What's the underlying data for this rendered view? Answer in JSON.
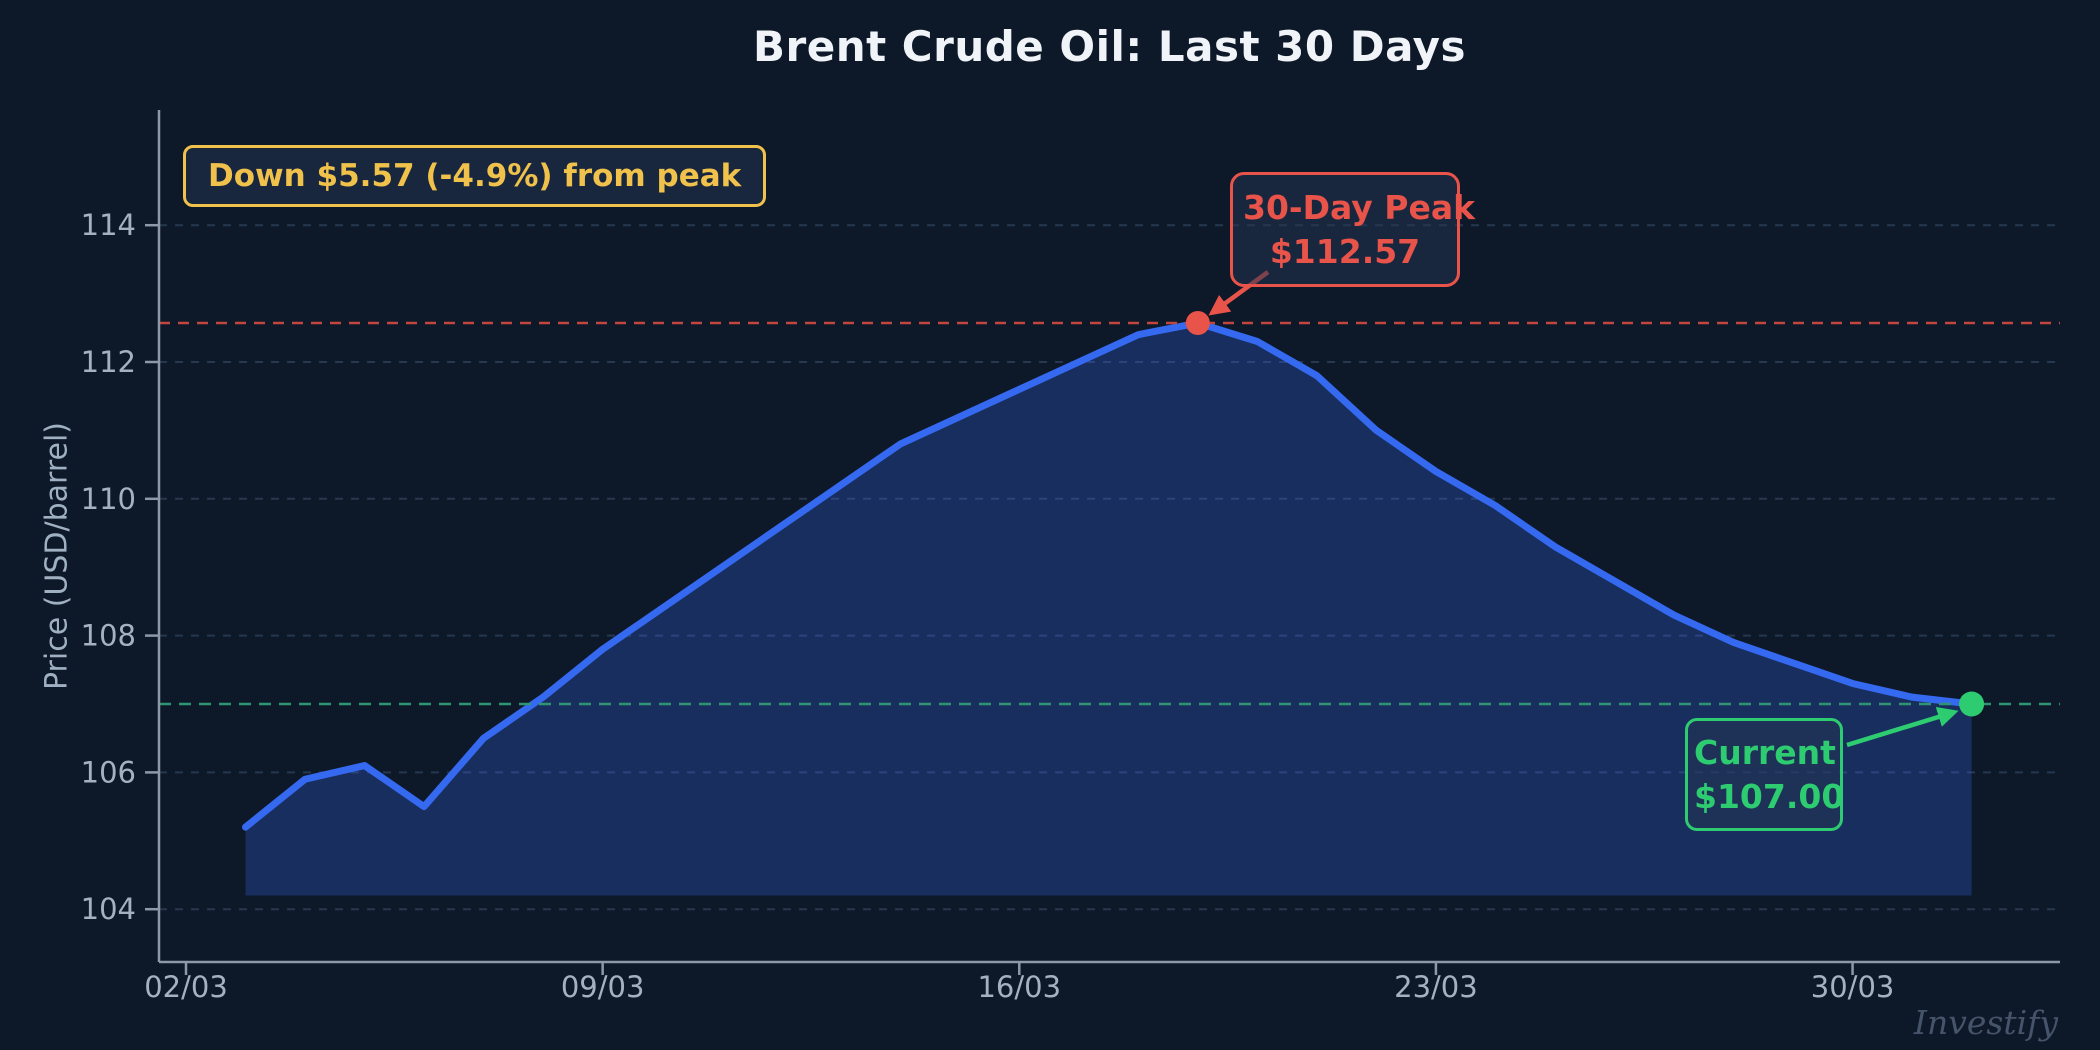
{
  "title": "Brent Crude Oil: Last 30 Days",
  "watermark": "Investify",
  "axes": {
    "y_label": "Price (USD/barrel)",
    "y_ticks": [
      104,
      106,
      108,
      110,
      112,
      114
    ],
    "x_ticks": [
      "02/03",
      "09/03",
      "16/03",
      "23/03",
      "30/03"
    ]
  },
  "annotations": {
    "drawdown": {
      "text": "Down $5.57 (-4.9%) from peak"
    },
    "peak": {
      "label": "30-Day Peak",
      "value": "$112.57"
    },
    "current": {
      "label": "Current",
      "value": "$107.00"
    }
  },
  "colors": {
    "background": "#0d1828",
    "line": "#3569f0",
    "area_fill": "rgba(53,105,240,0.28)",
    "grid": "#26384f",
    "axis": "#8d99a9",
    "tick_text": "#a6b1c0",
    "title_text": "#f0f4f8",
    "gold": "#f0c24b",
    "red": "#e8534a",
    "red_dash": "#c2453e",
    "green": "#2ecc71",
    "green_dash": "#2f9472",
    "watermark_text": "#46546b"
  },
  "chart_data": {
    "type": "area",
    "title": "Brent Crude Oil: Last 30 Days",
    "xlabel": "",
    "ylabel": "Price (USD/barrel)",
    "x": [
      "03/03",
      "04/03",
      "05/03",
      "06/03",
      "07/03",
      "08/03",
      "09/03",
      "10/03",
      "11/03",
      "12/03",
      "13/03",
      "14/03",
      "15/03",
      "16/03",
      "17/03",
      "18/03",
      "19/03",
      "20/03",
      "21/03",
      "22/03",
      "23/03",
      "24/03",
      "25/03",
      "26/03",
      "27/03",
      "28/03",
      "29/03",
      "30/03",
      "31/03",
      "01/04"
    ],
    "values": [
      105.2,
      105.9,
      106.1,
      105.5,
      106.5,
      107.1,
      107.8,
      108.4,
      109.0,
      109.6,
      110.2,
      110.8,
      111.2,
      111.6,
      112.0,
      112.4,
      112.57,
      112.3,
      111.8,
      111.0,
      110.4,
      109.9,
      109.3,
      108.8,
      108.3,
      107.9,
      107.6,
      107.3,
      107.1,
      107.0
    ],
    "x_tick_labels": [
      "02/03",
      "09/03",
      "16/03",
      "23/03",
      "30/03"
    ],
    "x_tick_day_offsets": [
      0,
      7,
      14,
      21,
      28
    ],
    "y_ticks": [
      104,
      106,
      108,
      110,
      112,
      114
    ],
    "ylim": [
      103.2,
      115.7
    ],
    "grid": "horizontal-dashed",
    "legend": false,
    "area_baseline": 104.2,
    "peak": {
      "date": "19/03",
      "value": 112.57,
      "label": "30-Day Peak",
      "value_label": "$112.57"
    },
    "current": {
      "date": "01/04",
      "value": 107.0,
      "label": "Current",
      "value_label": "$107.00"
    },
    "drawdown_note": "Down $5.57 (-4.9%) from peak",
    "reference_lines": [
      {
        "value": 112.57,
        "style": "dashed",
        "color": "#c2453e"
      },
      {
        "value": 107.0,
        "style": "dashed",
        "color": "#2f9472"
      }
    ]
  }
}
